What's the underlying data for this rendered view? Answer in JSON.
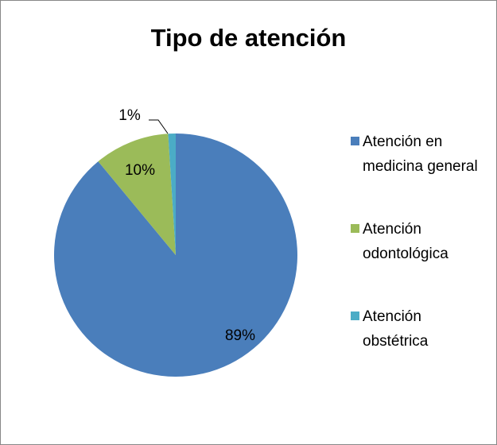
{
  "chart_data": {
    "type": "pie",
    "title": "Tipo de atención",
    "categories": [
      "Atención en medicina general",
      "Atención odontológica",
      "Atención obstétrica"
    ],
    "values": [
      89,
      10,
      1
    ],
    "value_labels": [
      "89%",
      "10%",
      "1%"
    ],
    "colors": [
      "#4a7ebb",
      "#9bbb59",
      "#4bacc6"
    ],
    "legend": "right"
  }
}
